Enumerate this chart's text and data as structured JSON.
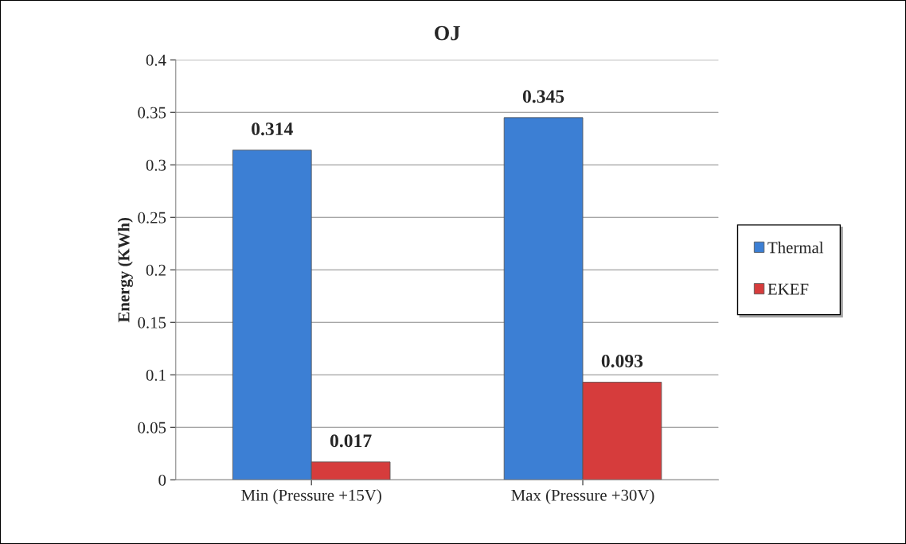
{
  "chart_data": {
    "type": "bar",
    "title": "OJ",
    "ylabel": "Energy (KWh)",
    "categories": [
      "Min (Pressure +15V)",
      "Max (Pressure +30V)"
    ],
    "series": [
      {
        "name": "Thermal",
        "color": "#3c7fd4",
        "values": [
          0.314,
          0.345
        ]
      },
      {
        "name": "EKEF",
        "color": "#d63c3c",
        "values": [
          0.017,
          0.093
        ]
      }
    ],
    "ylim": [
      0,
      0.4
    ],
    "yticks": [
      0,
      0.05,
      0.1,
      0.15,
      0.2,
      0.25,
      0.3,
      0.35,
      0.4
    ],
    "grid": "y",
    "legend": "right",
    "data_labels": true
  }
}
